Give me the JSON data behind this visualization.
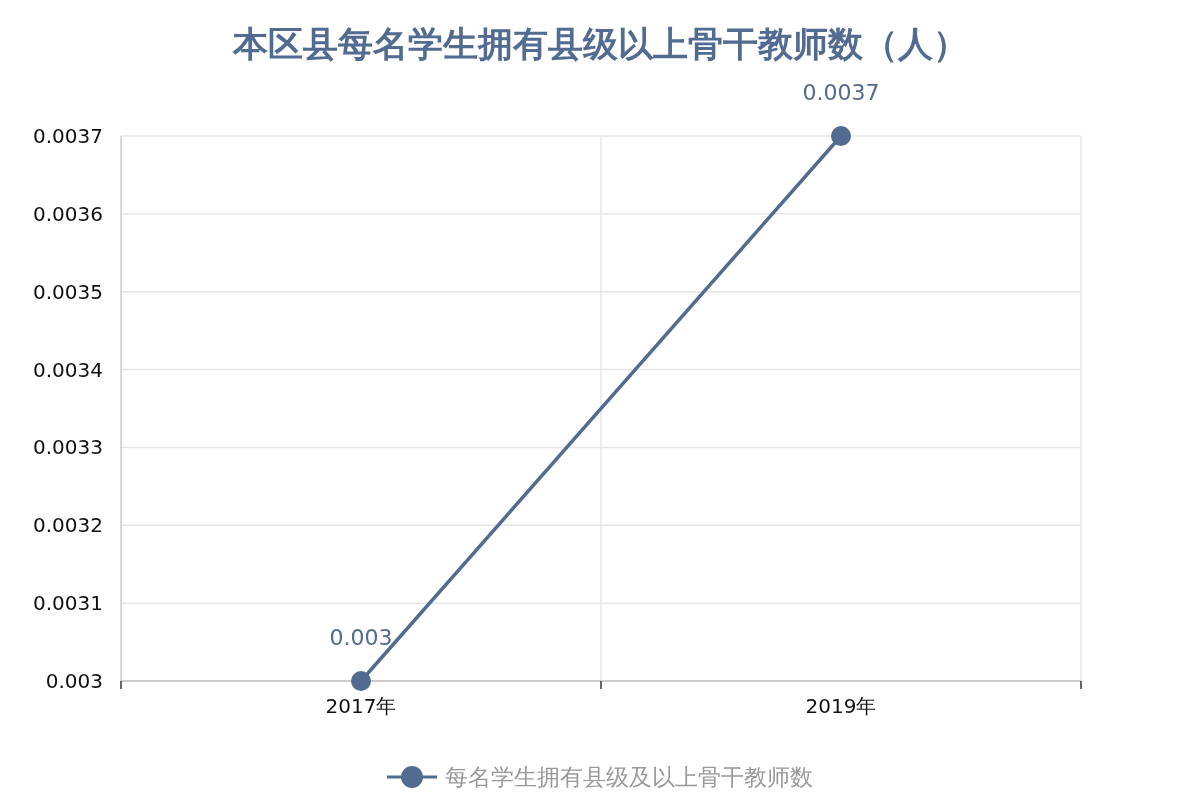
{
  "chart_data": {
    "type": "line",
    "title": "本区县每名学生拥有县级以上骨干教师数（人）",
    "categories": [
      "2017年",
      "2019年"
    ],
    "series": [
      {
        "name": "每名学生拥有县级及以上骨干教师数",
        "color": "#516b91",
        "values": [
          0.003,
          0.0037
        ]
      }
    ],
    "ylim": [
      0.003,
      0.0037
    ],
    "yticks": [
      0.003,
      0.0031,
      0.0032,
      0.0033,
      0.0034,
      0.0035,
      0.0036,
      0.0037
    ],
    "grid": true,
    "legend": "bottom",
    "marker": "circle",
    "line_style": "solid",
    "data_labels": true
  }
}
